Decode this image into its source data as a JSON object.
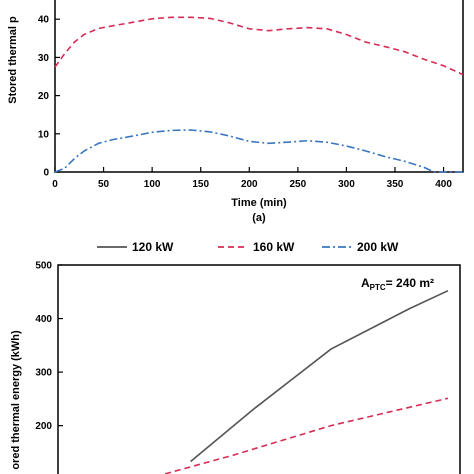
{
  "chart_data": [
    {
      "type": "line",
      "panel_label": "(a)",
      "xlabel": "Time (min)",
      "ylabel": "Stored thermal p",
      "xlim": [
        0,
        420
      ],
      "ylim": [
        0,
        45
      ],
      "x_ticks": [
        0,
        50,
        100,
        150,
        200,
        250,
        300,
        350,
        400
      ],
      "y_ticks": [
        0,
        10,
        20,
        30,
        40
      ],
      "grid": false,
      "series": [
        {
          "name": "160 kW",
          "color": "#d62d55",
          "style": "dashed",
          "x": [
            0,
            10,
            20,
            30,
            45,
            60,
            80,
            100,
            120,
            140,
            160,
            180,
            200,
            220,
            240,
            260,
            280,
            300,
            320,
            340,
            360,
            380,
            400,
            420
          ],
          "y": [
            27.5,
            31,
            34,
            36,
            37.6,
            38.3,
            39.2,
            40.1,
            40.5,
            40.5,
            40.2,
            39,
            37.5,
            37,
            37.5,
            37.8,
            37.5,
            36,
            34,
            32.8,
            31.5,
            29.5,
            27.8,
            25.5
          ]
        },
        {
          "name": "200 kW",
          "color": "#3a77c0",
          "style": "dashdot",
          "x": [
            0,
            10,
            20,
            30,
            45,
            60,
            80,
            100,
            120,
            140,
            160,
            180,
            200,
            220,
            240,
            260,
            280,
            300,
            320,
            340,
            360,
            380,
            390,
            420
          ],
          "y": [
            0,
            1,
            3.5,
            5.5,
            7.5,
            8.5,
            9.4,
            10.4,
            10.9,
            11,
            10.5,
            9.4,
            8,
            7.5,
            7.8,
            8.2,
            7.8,
            6.8,
            5.5,
            4,
            2.8,
            1.2,
            0,
            0
          ]
        }
      ]
    },
    {
      "type": "line",
      "xlabel": "",
      "ylabel": "ored thermal energy (kWh)",
      "annotation_main": "A",
      "annotation_sub": "PTC",
      "annotation_rest": "= 240 m²",
      "ylim": [
        100,
        500
      ],
      "y_ticks": [
        200,
        300,
        400,
        500
      ],
      "grid": false,
      "legend_position": "top",
      "series": [
        {
          "name": "120 kW",
          "color": "#555555",
          "style": "solid",
          "x": [
            0.34,
            0.5,
            0.7,
            0.9,
            1.0
          ],
          "y": [
            133,
            230,
            343,
            418,
            452
          ]
        },
        {
          "name": "160 kW",
          "color": "#d62d55",
          "style": "dashed",
          "x": [
            0.25,
            0.45,
            0.7,
            1.0
          ],
          "y": [
            105,
            145,
            200,
            251
          ]
        },
        {
          "name": "200 kW",
          "color": "#3a77c0",
          "style": "dashdot",
          "x": [],
          "y": []
        }
      ]
    }
  ]
}
